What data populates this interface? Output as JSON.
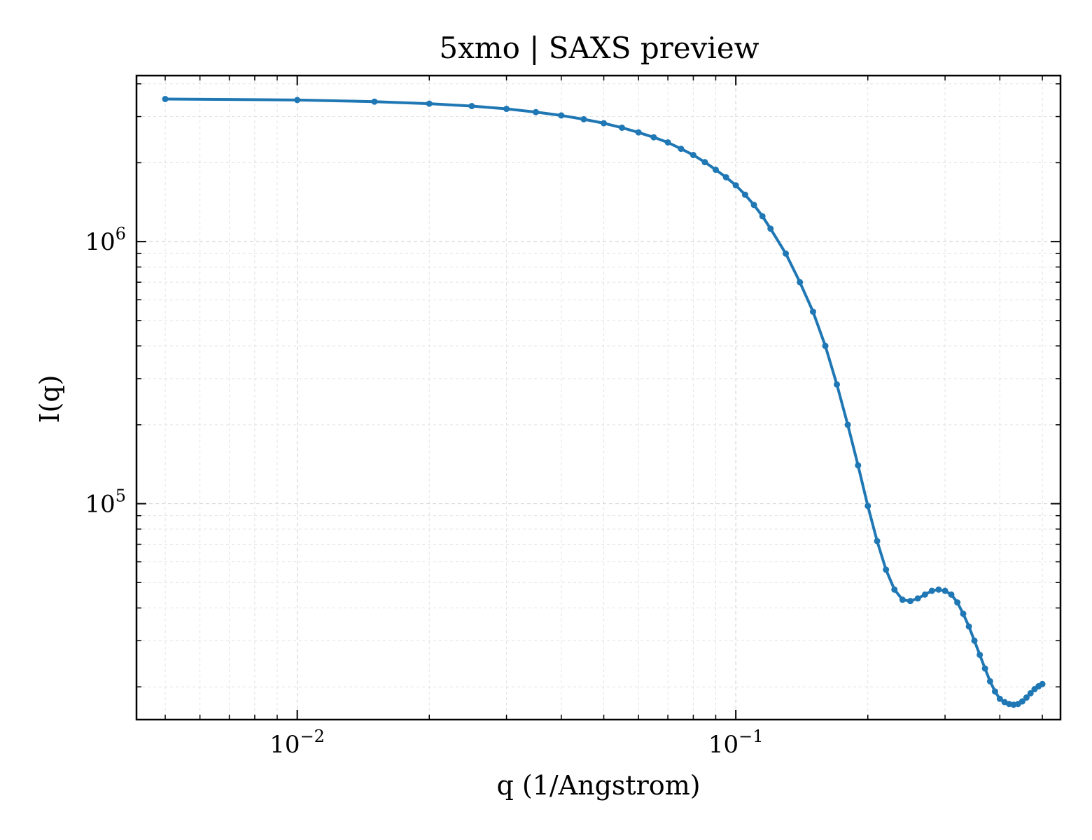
{
  "chart_data": {
    "type": "line",
    "title": "5xmo | SAXS preview",
    "xlabel": "q (1/Angstrom)",
    "ylabel": "I(q)",
    "xscale": "log",
    "yscale": "log",
    "xlim": [
      0.0043,
      0.55
    ],
    "ylim": [
      15000,
      4300000
    ],
    "grid": true,
    "markers": true,
    "line_color": "#1f77b4",
    "x_ticks": [
      {
        "value": 0.01,
        "base": "10",
        "exp": "−2"
      },
      {
        "value": 0.1,
        "base": "10",
        "exp": "−1"
      }
    ],
    "y_ticks": [
      {
        "value": 100000,
        "base": "10",
        "exp": "5"
      },
      {
        "value": 1000000,
        "base": "10",
        "exp": "6"
      }
    ],
    "series": [
      {
        "x": [
          0.005,
          0.01,
          0.015,
          0.02,
          0.025,
          0.03,
          0.035,
          0.04,
          0.045,
          0.05,
          0.055,
          0.06,
          0.065,
          0.07,
          0.075,
          0.08,
          0.085,
          0.09,
          0.095,
          0.1,
          0.105,
          0.11,
          0.115,
          0.12,
          0.13,
          0.14,
          0.15,
          0.16,
          0.17,
          0.18,
          0.19,
          0.2,
          0.21,
          0.22,
          0.23,
          0.24,
          0.25,
          0.26,
          0.27,
          0.28,
          0.29,
          0.3,
          0.31,
          0.32,
          0.33,
          0.34,
          0.35,
          0.36,
          0.37,
          0.38,
          0.39,
          0.4,
          0.41,
          0.42,
          0.43,
          0.44,
          0.45,
          0.46,
          0.47,
          0.48,
          0.49,
          0.5
        ],
        "y": [
          3500000,
          3470000,
          3420000,
          3360000,
          3290000,
          3210000,
          3120000,
          3030000,
          2930000,
          2830000,
          2720000,
          2610000,
          2500000,
          2390000,
          2260000,
          2140000,
          2010000,
          1880000,
          1760000,
          1640000,
          1510000,
          1380000,
          1250000,
          1120000,
          900000,
          700000,
          540000,
          400000,
          285000,
          200000,
          140000,
          98000,
          72000,
          56000,
          47000,
          43000,
          42500,
          43500,
          45000,
          46500,
          47000,
          46500,
          45000,
          42000,
          38000,
          34000,
          30000,
          26500,
          23500,
          21000,
          19200,
          18000,
          17500,
          17200,
          17100,
          17200,
          17600,
          18200,
          18900,
          19600,
          20100,
          20500
        ]
      }
    ]
  }
}
